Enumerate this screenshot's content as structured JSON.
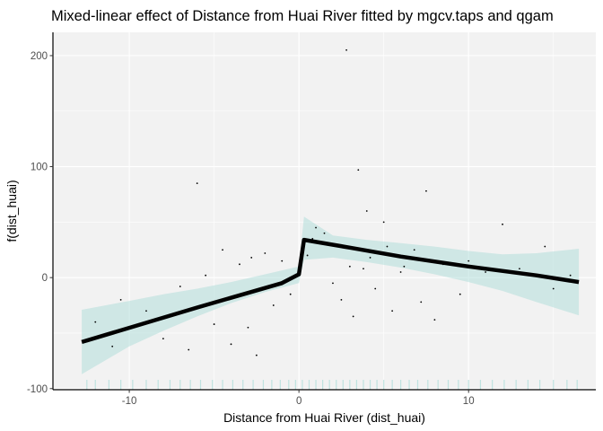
{
  "chart_data": {
    "type": "line",
    "title": "Mixed-linear effect of Distance from Huai River fitted by mgcv.taps and qgam",
    "xlabel": "Distance from Huai River (dist_huai)",
    "ylabel": "f(dist_huai)",
    "xlim": [
      -14.5,
      17.5
    ],
    "ylim": [
      -101,
      221
    ],
    "x_ticks": [
      -10,
      0,
      10
    ],
    "x_tick_labels": [
      "-10",
      "0",
      "10"
    ],
    "y_ticks": [
      -100,
      0,
      100,
      200
    ],
    "y_tick_labels": [
      "-100",
      "0",
      "100",
      "200"
    ],
    "grid": true,
    "legend": "none",
    "colors": {
      "panel_background": "#f2f2f2",
      "grid": "#ffffff",
      "fit_line": "#000000",
      "ribbon": "#b2dfdb",
      "points": "#000000",
      "rug": "#b2dfdb"
    },
    "series": [
      {
        "type": "line",
        "x": [
          -12.8,
          -6,
          -1,
          0,
          0.3,
          3,
          6,
          10,
          14,
          16.5
        ],
        "y": [
          -58,
          -27,
          -5,
          3,
          34,
          27,
          19,
          10,
          2,
          -4
        ]
      },
      {
        "type": "ribbon",
        "x": [
          -12.8,
          -10,
          -8,
          -6,
          -4,
          -2,
          0,
          0.3,
          2,
          4,
          6,
          8,
          10,
          12,
          14,
          16.5
        ],
        "lower": [
          -87,
          -62,
          -48,
          -35,
          -23,
          -13,
          -5,
          16,
          18,
          14,
          9,
          3,
          -4,
          -12,
          -22,
          -34
        ],
        "upper": [
          -29,
          -21,
          -15,
          -10,
          -4,
          3,
          10,
          55,
          38,
          34,
          31,
          28,
          24,
          21,
          22,
          26
        ]
      },
      {
        "type": "scatter",
        "x": [
          2.8,
          3.5,
          -6,
          4,
          7.5,
          -4.5,
          -2,
          12,
          5,
          3,
          1,
          -1,
          2,
          4.5,
          6,
          8,
          10,
          -3,
          -5,
          -8,
          -11,
          -6.5,
          -4,
          -2.5,
          -1.5,
          0.5,
          1.5,
          2.5,
          3.8,
          5.5,
          6.8,
          8.5,
          9.5,
          11,
          13,
          15,
          16,
          -9,
          -10.5,
          -12,
          -7,
          -3.5,
          -0.5,
          0.8,
          2.2,
          3.2,
          4.2,
          5.2,
          6.2,
          7.2,
          -5.5,
          -2.8,
          14.5
        ],
        "y": [
          205,
          97,
          85,
          60,
          78,
          25,
          22,
          48,
          50,
          10,
          45,
          15,
          -5,
          -10,
          5,
          -38,
          15,
          -45,
          -42,
          -55,
          -62,
          -65,
          -60,
          -70,
          -25,
          20,
          40,
          -20,
          8,
          -30,
          25,
          12,
          -15,
          5,
          8,
          -10,
          2,
          -30,
          -20,
          -40,
          -8,
          12,
          -15,
          35,
          30,
          -35,
          18,
          28,
          10,
          -22,
          2,
          18,
          28
        ]
      },
      {
        "type": "rug",
        "x": [
          -12.5,
          -12,
          -11.2,
          -10.5,
          -9.8,
          -9,
          -8.3,
          -7.6,
          -7,
          -6.4,
          -5.8,
          -5.1,
          -4.5,
          -3.9,
          -3.3,
          -2.7,
          -2.1,
          -1.6,
          -1.1,
          -0.6,
          -0.2,
          0.2,
          0.6,
          1,
          1.4,
          1.8,
          2.2,
          2.6,
          3,
          3.4,
          3.8,
          4.2,
          4.6,
          5,
          5.5,
          6,
          6.5,
          7,
          7.6,
          8.2,
          8.8,
          9.4,
          10,
          10.7,
          11.4,
          12.1,
          12.8,
          13.5,
          14.2,
          15,
          15.8,
          16.4
        ]
      }
    ]
  }
}
